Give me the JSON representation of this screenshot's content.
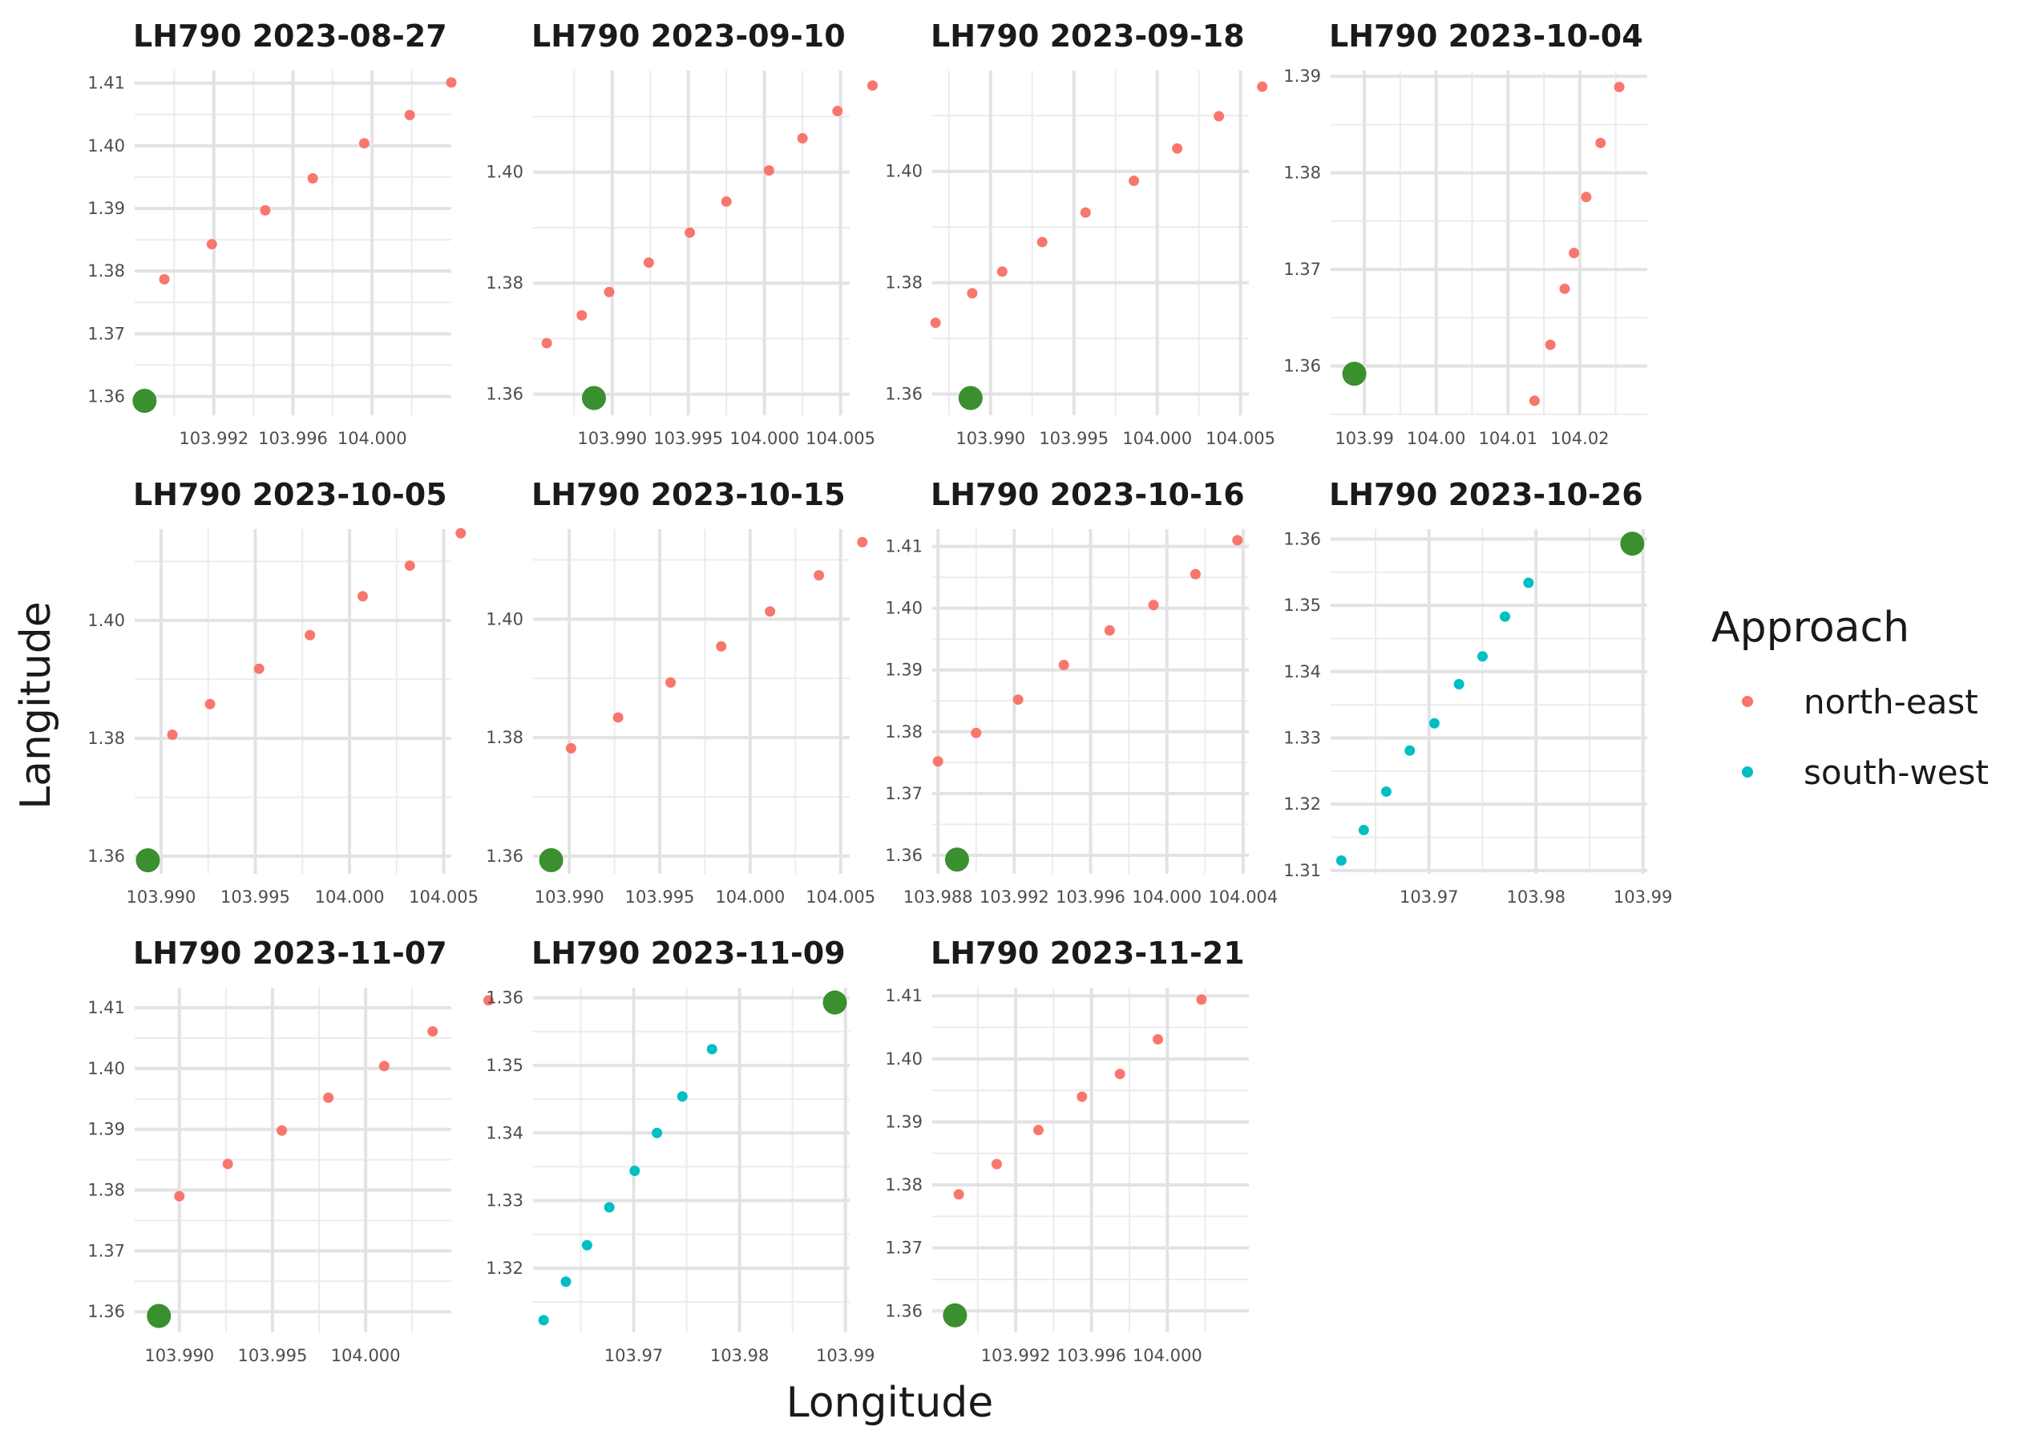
{
  "chart_data": {
    "type": "scatter",
    "xlabel": "Longitude",
    "ylabel": "Langitude",
    "legend": {
      "title": "Approach",
      "position": "right",
      "entries": [
        {
          "label": "north-east",
          "color": "#f8766d"
        },
        {
          "label": "south-west",
          "color": "#00bfc4"
        }
      ]
    },
    "reference_point": {
      "color": "#3a8f2e"
    },
    "panels": [
      {
        "title": "LH790 2023-08-27",
        "xlim": [
          103.988,
          104.004
        ],
        "ylim": [
          1.357,
          1.412
        ],
        "xticks": [
          103.992,
          103.996,
          104.0
        ],
        "xtick_labels": [
          "103.992",
          "103.996",
          "104.000"
        ],
        "yticks": [
          1.36,
          1.37,
          1.38,
          1.39,
          1.4,
          1.41
        ],
        "ytick_labels": [
          "1.36",
          "1.37",
          "1.38",
          "1.39",
          "1.40",
          "1.41"
        ],
        "reference": {
          "x": 103.9885,
          "y": 1.3593
        },
        "series": [
          {
            "group": "north-east",
            "x": [
              103.9895,
              103.9919,
              103.9946,
              103.997,
              103.9996,
              104.0019,
              104.004
            ],
            "y": [
              1.3787,
              1.3843,
              1.3897,
              1.3948,
              1.4004,
              1.4049,
              1.4101
            ]
          }
        ]
      },
      {
        "title": "LH790 2023-09-10",
        "xlim": [
          103.9848,
          104.0056
        ],
        "ylim": [
          1.3562,
          1.4183
        ],
        "xticks": [
          103.99,
          103.995,
          104.0,
          104.005
        ],
        "xtick_labels": [
          "103.990",
          "103.995",
          "104.000",
          "104.005"
        ],
        "yticks": [
          1.36,
          1.38,
          1.4
        ],
        "ytick_labels": [
          "1.36",
          "1.38",
          "1.40"
        ],
        "reference": {
          "x": 103.9888,
          "y": 1.3593
        },
        "series": [
          {
            "group": "north-east",
            "x": [
              103.9857,
              103.988,
              103.9898,
              103.9924,
              103.9951,
              103.9975,
              104.0003,
              104.0025,
              104.0048,
              104.0071
            ],
            "y": [
              1.3692,
              1.3742,
              1.3784,
              1.3837,
              1.3891,
              1.3947,
              1.4003,
              1.4061,
              1.411,
              1.4156
            ]
          }
        ]
      },
      {
        "title": "LH790 2023-09-18",
        "xlim": [
          103.9865,
          104.0055
        ],
        "ylim": [
          1.3562,
          1.4181
        ],
        "xticks": [
          103.99,
          103.995,
          104.0,
          104.005
        ],
        "xtick_labels": [
          "103.990",
          "103.995",
          "104.000",
          "104.005"
        ],
        "yticks": [
          1.36,
          1.38,
          1.4
        ],
        "ytick_labels": [
          "1.36",
          "1.38",
          "1.40"
        ],
        "reference": {
          "x": 103.9888,
          "y": 1.3593
        },
        "series": [
          {
            "group": "north-east",
            "x": [
              103.9867,
              103.9889,
              103.9907,
              103.9931,
              103.9957,
              103.9986,
              104.0012,
              104.0037,
              104.0063
            ],
            "y": [
              1.3728,
              1.3781,
              1.382,
              1.3873,
              1.3926,
              1.3983,
              1.4041,
              1.4099,
              1.4152
            ]
          }
        ]
      },
      {
        "title": "LH790 2023-10-04",
        "xlim": [
          103.9853,
          104.0294
        ],
        "ylim": [
          1.3549,
          1.3906
        ],
        "xticks": [
          103.99,
          104.0,
          104.01,
          104.02
        ],
        "xtick_labels": [
          "103.99",
          "104.00",
          "104.01",
          "104.02"
        ],
        "yticks": [
          1.36,
          1.37,
          1.38,
          1.39
        ],
        "ytick_labels": [
          "1.36",
          "1.37",
          "1.38",
          "1.39"
        ],
        "reference": {
          "x": 103.9886,
          "y": 1.3592
        },
        "series": [
          {
            "group": "north-east",
            "x": [
              104.0137,
              104.0159,
              104.0179,
              104.0192,
              104.0209,
              104.0229,
              104.0255
            ],
            "y": [
              1.3564,
              1.3622,
              1.368,
              1.3717,
              1.3775,
              1.3831,
              1.3889
            ]
          }
        ]
      },
      {
        "title": "LH790 2023-10-05",
        "xlim": [
          103.9886,
          104.0054
        ],
        "ylim": [
          1.357,
          1.4155
        ],
        "xticks": [
          103.99,
          103.995,
          104.0,
          104.005
        ],
        "xtick_labels": [
          "103.990",
          "103.995",
          "104.000",
          "104.005"
        ],
        "yticks": [
          1.36,
          1.38,
          1.4
        ],
        "ytick_labels": [
          "1.36",
          "1.38",
          "1.40"
        ],
        "reference": {
          "x": 103.9893,
          "y": 1.3593
        },
        "series": [
          {
            "group": "north-east",
            "x": [
              103.9906,
              103.9926,
              103.9952,
              103.9979,
              104.0007,
              104.0032,
              104.0059
            ],
            "y": [
              1.3806,
              1.3858,
              1.3918,
              1.3975,
              1.4041,
              1.4093,
              1.4148
            ]
          }
        ]
      },
      {
        "title": "LH790 2023-10-15",
        "xlim": [
          103.988,
          104.0055
        ],
        "ylim": [
          1.357,
          1.4152
        ],
        "xticks": [
          103.99,
          103.995,
          104.0,
          104.005
        ],
        "xtick_labels": [
          "103.990",
          "103.995",
          "104.000",
          "104.005"
        ],
        "yticks": [
          1.36,
          1.38,
          1.4
        ],
        "ytick_labels": [
          "1.36",
          "1.38",
          "1.40"
        ],
        "reference": {
          "x": 103.989,
          "y": 1.3593
        },
        "series": [
          {
            "group": "north-east",
            "x": [
              103.9901,
              103.9927,
              103.9956,
              103.9984,
              104.0011,
              104.0038,
              104.0062
            ],
            "y": [
              1.3782,
              1.3834,
              1.3893,
              1.3954,
              1.4013,
              1.4074,
              1.413
            ]
          }
        ]
      },
      {
        "title": "LH790 2023-10-16",
        "xlim": [
          103.9877,
          104.0043
        ],
        "ylim": [
          1.357,
          1.4128
        ],
        "xticks": [
          103.988,
          103.992,
          103.996,
          104.0,
          104.004
        ],
        "xtick_labels": [
          "103.988",
          "103.992",
          "103.996",
          "104.000",
          "104.004"
        ],
        "yticks": [
          1.36,
          1.37,
          1.38,
          1.39,
          1.4,
          1.41
        ],
        "ytick_labels": [
          "1.36",
          "1.37",
          "1.38",
          "1.39",
          "1.40",
          "1.41"
        ],
        "reference": {
          "x": 103.989,
          "y": 1.3593
        },
        "series": [
          {
            "group": "north-east",
            "x": [
              103.988,
              103.99,
              103.9922,
              103.9946,
              103.997,
              103.9993,
              104.0015,
              104.0037
            ],
            "y": [
              1.3752,
              1.3798,
              1.3852,
              1.3908,
              1.3964,
              1.4005,
              1.4055,
              1.411
            ]
          }
        ]
      },
      {
        "title": "LH790 2023-10-26",
        "xlim": [
          103.9608,
          103.9904
        ],
        "ylim": [
          1.3095,
          1.3615
        ],
        "xticks": [
          103.97,
          103.98,
          103.99
        ],
        "xtick_labels": [
          "103.97",
          "103.98",
          "103.99"
        ],
        "yticks": [
          1.31,
          1.32,
          1.33,
          1.34,
          1.35,
          1.36
        ],
        "ytick_labels": [
          "1.31",
          "1.32",
          "1.33",
          "1.34",
          "1.35",
          "1.36"
        ],
        "reference": {
          "x": 103.989,
          "y": 1.3593
        },
        "series": [
          {
            "group": "south-west",
            "x": [
              103.9618,
              103.9639,
              103.966,
              103.9682,
              103.9705,
              103.9728,
              103.975,
              103.9771,
              103.9793
            ],
            "y": [
              1.3115,
              1.3161,
              1.3219,
              1.3281,
              1.3322,
              1.3381,
              1.3423,
              1.3483,
              1.3534
            ]
          }
        ]
      },
      {
        "title": "LH790 2023-11-07",
        "xlim": [
          103.9876,
          104.0046
        ],
        "ylim": [
          1.3566,
          1.4133
        ],
        "xticks": [
          103.99,
          103.995,
          104.0
        ],
        "xtick_labels": [
          "103.990",
          "103.995",
          "104.000"
        ],
        "yticks": [
          1.36,
          1.37,
          1.38,
          1.39,
          1.4,
          1.41
        ],
        "ytick_labels": [
          "1.36",
          "1.37",
          "1.38",
          "1.39",
          "1.40",
          "1.41"
        ],
        "reference": {
          "x": 103.9889,
          "y": 1.3593
        },
        "series": [
          {
            "group": "north-east",
            "x": [
              103.99,
              103.9926,
              103.9955,
              103.998,
              104.001,
              104.0036,
              104.0066
            ],
            "y": [
              1.379,
              1.3843,
              1.3898,
              1.3952,
              1.4004,
              1.4061,
              1.4112
            ]
          }
        ]
      },
      {
        "title": "LH790 2023-11-09",
        "xlim": [
          103.9605,
          103.9904
        ],
        "ylim": [
          1.3105,
          1.3615
        ],
        "xticks": [
          103.97,
          103.98,
          103.99
        ],
        "xtick_labels": [
          "103.97",
          "103.98",
          "103.99"
        ],
        "yticks": [
          1.32,
          1.33,
          1.34,
          1.35,
          1.36
        ],
        "ytick_labels": [
          "1.32",
          "1.33",
          "1.34",
          "1.35",
          "1.36"
        ],
        "reference": {
          "x": 103.989,
          "y": 1.3593
        },
        "series": [
          {
            "group": "south-west",
            "x": [
              103.9615,
              103.9636,
              103.9656,
              103.9677,
              103.9701,
              103.9722,
              103.9746,
              103.9774
            ],
            "y": [
              1.3123,
              1.318,
              1.3234,
              1.329,
              1.3344,
              1.34,
              1.3454,
              1.3524
            ]
          }
        ]
      },
      {
        "title": "LH790 2023-11-21",
        "xlim": [
          103.9876,
          104.0043
        ],
        "ylim": [
          1.3566,
          1.4113
        ],
        "xticks": [
          103.992,
          103.996,
          104.0
        ],
        "xtick_labels": [
          "103.992",
          "103.996",
          "104.000"
        ],
        "yticks": [
          1.36,
          1.37,
          1.38,
          1.39,
          1.4,
          1.41
        ],
        "ytick_labels": [
          "1.36",
          "1.37",
          "1.38",
          "1.39",
          "1.40",
          "1.41"
        ],
        "reference": {
          "x": 103.9888,
          "y": 1.3593
        },
        "series": [
          {
            "group": "north-east",
            "x": [
              103.989,
              103.991,
              103.9932,
              103.9955,
              103.9975,
              103.9995,
              104.0018
            ],
            "y": [
              1.3785,
              1.3833,
              1.3887,
              1.394,
              1.3976,
              1.4031,
              1.4094
            ]
          }
        ]
      }
    ]
  }
}
